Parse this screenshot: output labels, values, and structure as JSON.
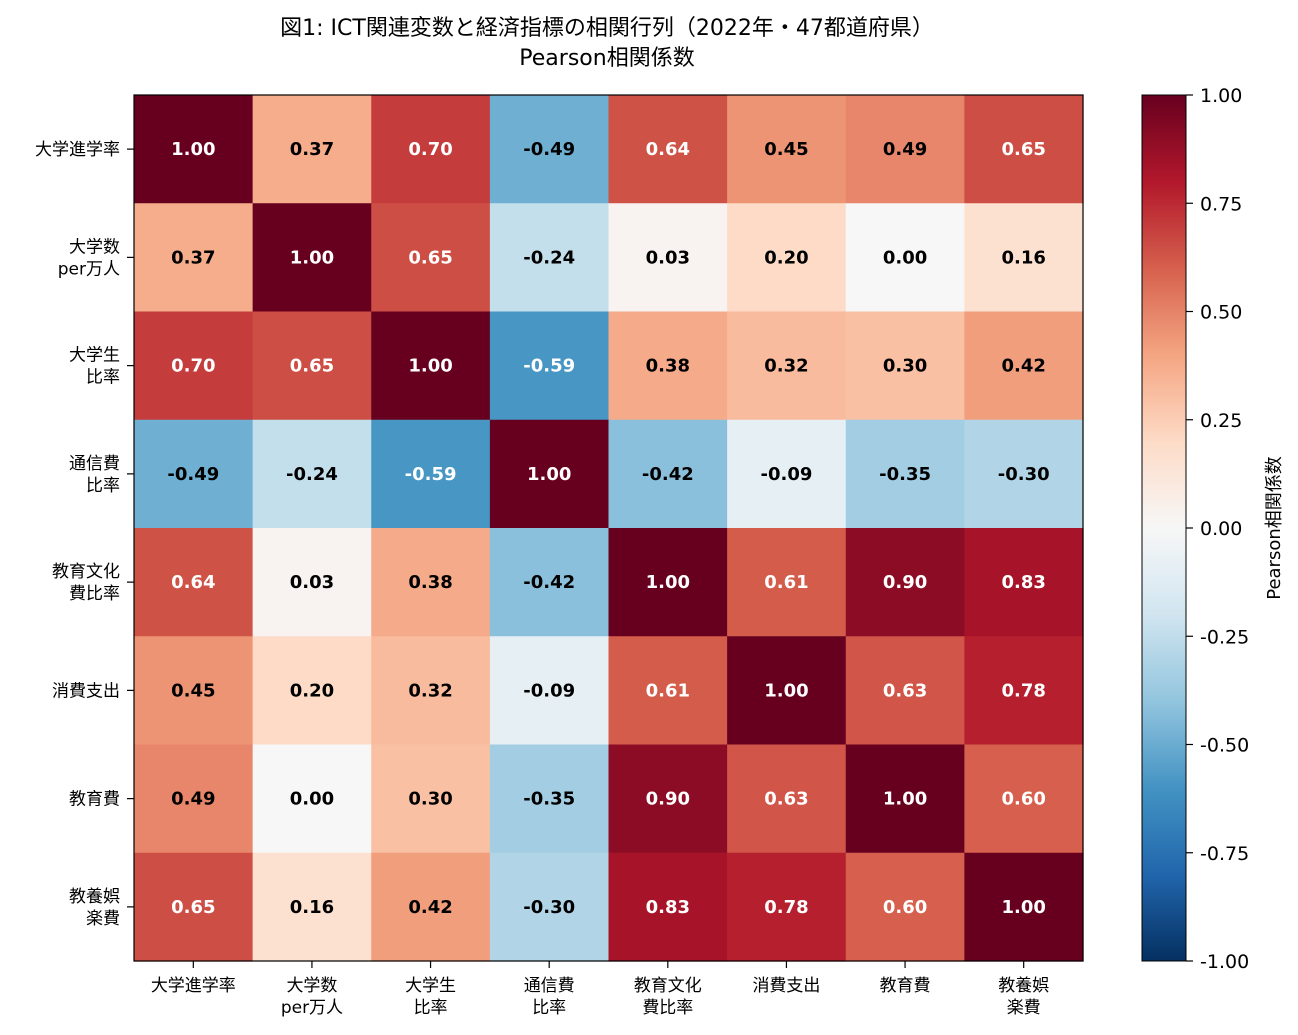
{
  "chart_data": {
    "type": "heatmap",
    "title": "図1: ICT関連変数と経済指標の相関行列（2022年・47都道府県）",
    "subtitle": "Pearson相関係数",
    "x_categories": [
      [
        "大学進学率"
      ],
      [
        "大学数",
        "per万人"
      ],
      [
        "大学生",
        "比率"
      ],
      [
        "通信費",
        "比率"
      ],
      [
        "教育文化",
        "費比率"
      ],
      [
        "消費支出"
      ],
      [
        "教育費"
      ],
      [
        "教養娯",
        "楽費"
      ]
    ],
    "y_categories": [
      [
        "大学進学率"
      ],
      [
        "大学数",
        "per万人"
      ],
      [
        "大学生",
        "比率"
      ],
      [
        "通信費",
        "比率"
      ],
      [
        "教育文化",
        "費比率"
      ],
      [
        "消費支出"
      ],
      [
        "教育費"
      ],
      [
        "教養娯",
        "楽費"
      ]
    ],
    "values": [
      [
        1.0,
        0.37,
        0.7,
        -0.49,
        0.64,
        0.45,
        0.49,
        0.65
      ],
      [
        0.37,
        1.0,
        0.65,
        -0.24,
        0.03,
        0.2,
        0.0,
        0.16
      ],
      [
        0.7,
        0.65,
        1.0,
        -0.59,
        0.38,
        0.32,
        0.3,
        0.42
      ],
      [
        -0.49,
        -0.24,
        -0.59,
        1.0,
        -0.42,
        -0.09,
        -0.35,
        -0.3
      ],
      [
        0.64,
        0.03,
        0.38,
        -0.42,
        1.0,
        0.61,
        0.9,
        0.83
      ],
      [
        0.45,
        0.2,
        0.32,
        -0.09,
        0.61,
        1.0,
        0.63,
        0.78
      ],
      [
        0.49,
        0.0,
        0.3,
        -0.35,
        0.9,
        0.63,
        1.0,
        0.6
      ],
      [
        0.65,
        0.16,
        0.42,
        -0.3,
        0.83,
        0.78,
        0.6,
        1.0
      ]
    ],
    "value_format_decimals": 2,
    "colormap": "RdBu_r",
    "vmin": -1.0,
    "vmax": 1.0,
    "colorbar": {
      "label": "Pearson相関係数",
      "ticks": [
        "1.00",
        "0.75",
        "0.50",
        "0.25",
        "0.00",
        "-0.25",
        "-0.50",
        "-0.75",
        "-1.00"
      ]
    },
    "text_color_dark": "#000000",
    "text_color_light": "#ffffff"
  }
}
